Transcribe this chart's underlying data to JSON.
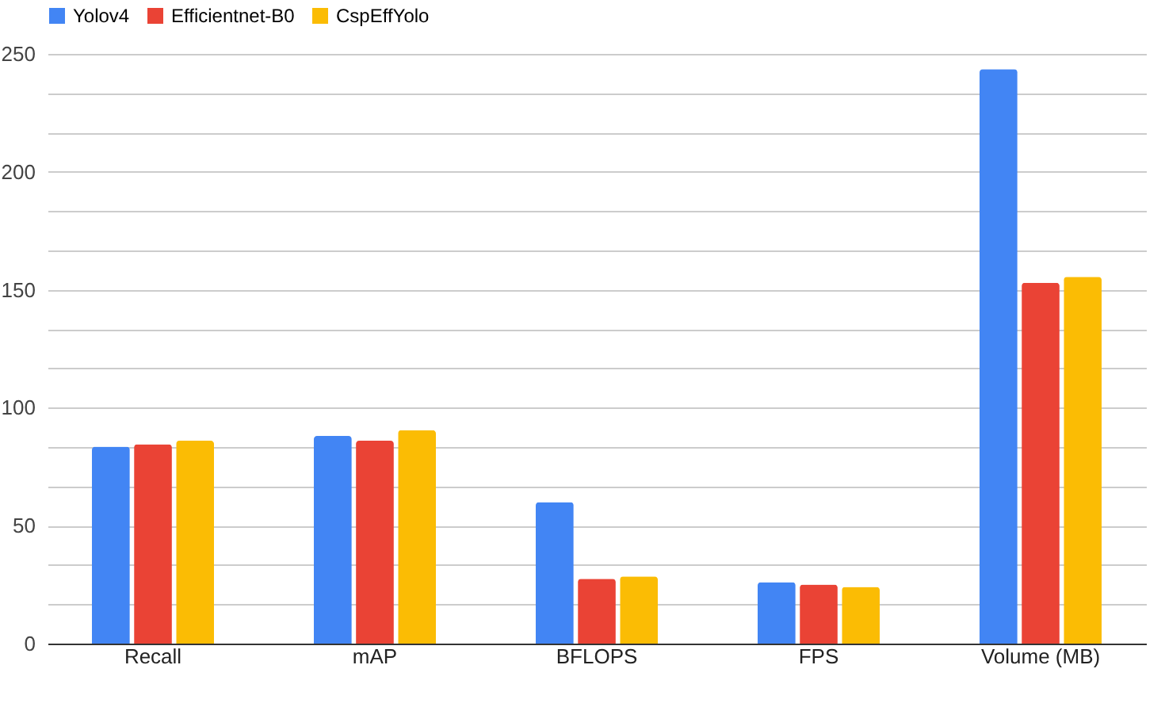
{
  "chart_data": {
    "type": "bar",
    "categories": [
      "Recall",
      "mAP",
      "BFLOPS",
      "FPS",
      "Volume (MB)"
    ],
    "series": [
      {
        "name": "Yolov4",
        "color": "#4285f4",
        "values": [
          83.5,
          88,
          60,
          26,
          243.5
        ]
      },
      {
        "name": "Efficientnet-B0",
        "color": "#ea4335",
        "values": [
          84.5,
          86,
          27.5,
          25,
          153
        ]
      },
      {
        "name": "CspEffYolo",
        "color": "#fbbc04",
        "values": [
          86,
          90.5,
          28.5,
          24,
          155.5
        ]
      }
    ],
    "ylim": [
      0,
      250
    ],
    "yticks": [
      0,
      {
        "value": 16.67,
        "label": null
      },
      {
        "value": 33.33,
        "label": null
      },
      50,
      {
        "value": 66.67,
        "label": null
      },
      {
        "value": 83.33,
        "label": null
      },
      100,
      {
        "value": 116.67,
        "label": null
      },
      {
        "value": 133.33,
        "label": null
      },
      150,
      {
        "value": 166.67,
        "label": null
      },
      {
        "value": 183.33,
        "label": null
      },
      200,
      {
        "value": 216.67,
        "label": null
      },
      {
        "value": 233.33,
        "label": null
      },
      250
    ],
    "grid": true,
    "legend": "top"
  }
}
